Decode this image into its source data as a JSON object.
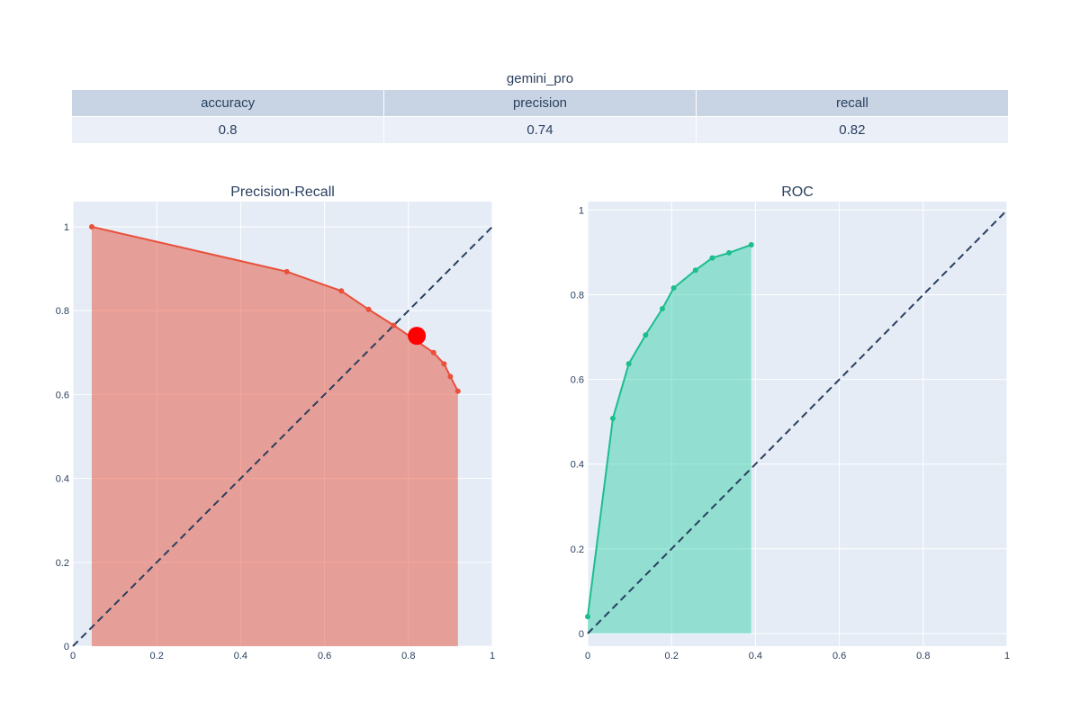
{
  "chart_data": [
    {
      "type": "table",
      "title": "gemini_pro",
      "columns": [
        "accuracy",
        "precision",
        "recall"
      ],
      "rows": [
        [
          "0.8",
          "0.74",
          "0.82"
        ]
      ]
    },
    {
      "type": "area",
      "title": "Precision-Recall",
      "xlabel": "",
      "ylabel": "",
      "xlim": [
        0,
        1
      ],
      "ylim": [
        0,
        1.06
      ],
      "xticks": [
        "0",
        "0.2",
        "0.4",
        "0.6",
        "0.8",
        "1"
      ],
      "yticks": [
        "0",
        "0.2",
        "0.4",
        "0.6",
        "0.8",
        "1"
      ],
      "x": [
        0.045,
        0.51,
        0.64,
        0.705,
        0.765,
        0.86,
        0.885,
        0.9,
        0.918
      ],
      "y": [
        1.0,
        0.893,
        0.847,
        0.803,
        0.765,
        0.7,
        0.673,
        0.643,
        0.608
      ],
      "highlight_point": {
        "x": 0.82,
        "y": 0.74
      },
      "diagonal": true,
      "color": "#e8503a",
      "fill_color": "#e8503a",
      "highlight_color": "#ff0000",
      "grid": true
    },
    {
      "type": "area",
      "title": "ROC",
      "xlabel": "",
      "ylabel": "",
      "xlim": [
        0,
        1
      ],
      "ylim": [
        -0.03,
        1.02
      ],
      "xticks": [
        "0",
        "0.2",
        "0.4",
        "0.6",
        "0.8",
        "1"
      ],
      "yticks": [
        "0",
        "0.2",
        "0.4",
        "0.6",
        "0.8",
        "1"
      ],
      "x": [
        0.0,
        0.06,
        0.098,
        0.138,
        0.178,
        0.205,
        0.257,
        0.297,
        0.337,
        0.39
      ],
      "y": [
        0.04,
        0.508,
        0.637,
        0.705,
        0.767,
        0.816,
        0.858,
        0.887,
        0.899,
        0.918
      ],
      "diagonal": true,
      "color": "#1cbe8c",
      "fill_color": "#3fd1ad",
      "grid": true
    }
  ]
}
